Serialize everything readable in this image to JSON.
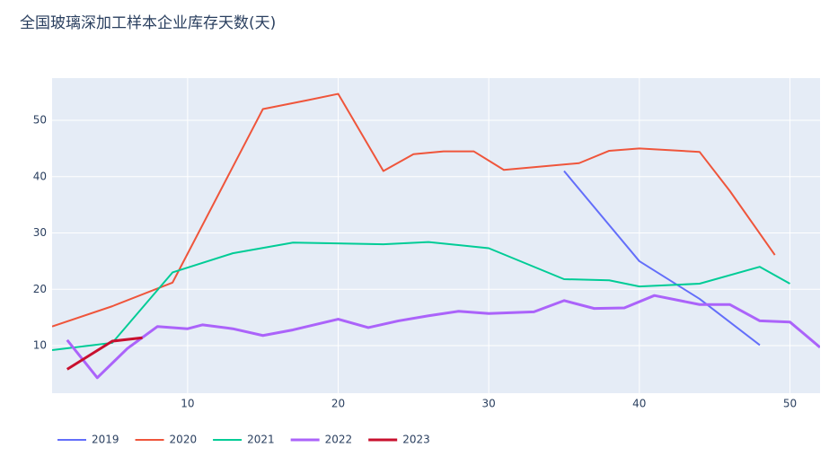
{
  "chart_data": {
    "type": "line",
    "title": "全国玻璃深加工样本企业库存天数(天)",
    "xlim": [
      1,
      52
    ],
    "ylim": [
      1.56,
      57.5
    ],
    "xticks": [
      10,
      20,
      30,
      40,
      50
    ],
    "yticks": [
      10,
      20,
      30,
      40,
      50
    ],
    "grid": true,
    "legend": "bottom-left",
    "series": [
      {
        "name": "2019",
        "color": "#636efa",
        "width": 2,
        "x": [
          35,
          40,
          44,
          48
        ],
        "values": [
          41,
          25,
          18.3,
          10.1
        ]
      },
      {
        "name": "2020",
        "color": "#ef553b",
        "width": 2,
        "x": [
          1,
          5,
          9,
          15,
          18,
          20,
          23,
          25,
          27,
          29,
          31,
          36,
          38,
          40,
          44,
          46,
          49
        ],
        "values": [
          13.4,
          17,
          21.2,
          52,
          53.6,
          54.7,
          41,
          44,
          44.5,
          44.5,
          41.2,
          42.4,
          44.6,
          45,
          44.4,
          37.5,
          26.1
        ]
      },
      {
        "name": "2021",
        "color": "#00cc96",
        "width": 2,
        "x": [
          1,
          5,
          9,
          13,
          17,
          23,
          26,
          30,
          35,
          38,
          40,
          44,
          48,
          50
        ],
        "values": [
          9.2,
          10.5,
          23,
          26.4,
          28.3,
          28,
          28.4,
          27.3,
          21.8,
          21.6,
          20.5,
          21,
          24,
          21
        ]
      },
      {
        "name": "2022",
        "color": "#ab63fa",
        "width": 3,
        "x": [
          2,
          4,
          6,
          8,
          10,
          11,
          13,
          15,
          17,
          20,
          22,
          24,
          26,
          28,
          30,
          33,
          35,
          37,
          39,
          41,
          44,
          46,
          48,
          50,
          52
        ],
        "values": [
          11,
          4.3,
          9.5,
          13.4,
          13,
          13.7,
          13,
          11.8,
          12.8,
          14.7,
          13.2,
          14.4,
          15.3,
          16.1,
          15.7,
          16,
          18,
          16.6,
          16.7,
          18.9,
          17.3,
          17.3,
          14.4,
          14.2,
          9.7
        ]
      },
      {
        "name": "2023",
        "color": "#c8102e",
        "width": 3,
        "x": [
          2,
          5,
          7
        ],
        "values": [
          5.8,
          10.8,
          11.4
        ]
      }
    ]
  }
}
